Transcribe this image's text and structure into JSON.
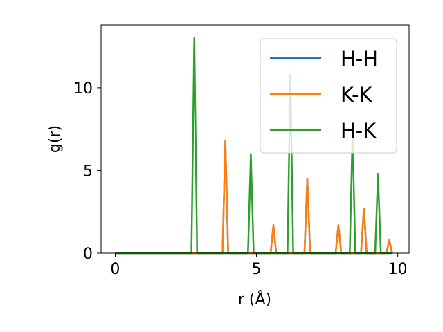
{
  "chart_data": {
    "type": "line",
    "xlabel": "r (Å)",
    "ylabel": "g(r)",
    "xlim": [
      -0.5,
      10.4
    ],
    "ylim": [
      0,
      13.8
    ],
    "xticks": [
      0,
      5,
      10
    ],
    "yticks": [
      0,
      5,
      10
    ],
    "grid": false,
    "legend_position": "top-right",
    "series": [
      {
        "name": "H-H",
        "color": "#1f77b4",
        "points": [
          [
            0,
            0
          ],
          [
            2.75,
            0
          ],
          [
            2.85,
            0
          ],
          [
            3.8,
            0
          ],
          [
            3.9,
            6.8
          ],
          [
            4.0,
            0
          ],
          [
            5.5,
            0
          ],
          [
            5.6,
            1.7
          ],
          [
            5.7,
            0
          ],
          [
            6.7,
            0
          ],
          [
            6.8,
            4.5
          ],
          [
            6.9,
            0
          ],
          [
            7.8,
            0
          ],
          [
            7.9,
            1.7
          ],
          [
            8.0,
            0
          ],
          [
            8.7,
            0
          ],
          [
            8.8,
            2.7
          ],
          [
            8.9,
            0
          ],
          [
            9.6,
            0
          ],
          [
            9.7,
            0.8
          ],
          [
            9.8,
            0
          ]
        ]
      },
      {
        "name": "K-K",
        "color": "#ff7f0e",
        "points": [
          [
            0,
            0
          ],
          [
            2.75,
            0
          ],
          [
            2.85,
            0
          ],
          [
            3.8,
            0
          ],
          [
            3.9,
            6.8
          ],
          [
            4.0,
            0
          ],
          [
            5.5,
            0
          ],
          [
            5.6,
            1.7
          ],
          [
            5.7,
            0
          ],
          [
            6.7,
            0
          ],
          [
            6.8,
            4.5
          ],
          [
            6.9,
            0
          ],
          [
            7.8,
            0
          ],
          [
            7.9,
            1.7
          ],
          [
            8.0,
            0
          ],
          [
            8.7,
            0
          ],
          [
            8.8,
            2.7
          ],
          [
            8.9,
            0
          ],
          [
            9.6,
            0
          ],
          [
            9.7,
            0.8
          ],
          [
            9.8,
            0
          ]
        ]
      },
      {
        "name": "H-K",
        "color": "#2ca02c",
        "points": [
          [
            0,
            0
          ],
          [
            2.7,
            0
          ],
          [
            2.8,
            13.0
          ],
          [
            2.9,
            0
          ],
          [
            4.7,
            0
          ],
          [
            4.8,
            6.0
          ],
          [
            4.9,
            0
          ],
          [
            6.1,
            0
          ],
          [
            6.2,
            10.8
          ],
          [
            6.3,
            0
          ],
          [
            8.3,
            0
          ],
          [
            8.4,
            7.2
          ],
          [
            8.5,
            0
          ],
          [
            9.2,
            0
          ],
          [
            9.3,
            4.8
          ],
          [
            9.4,
            0
          ],
          [
            9.8,
            0
          ]
        ]
      }
    ]
  }
}
